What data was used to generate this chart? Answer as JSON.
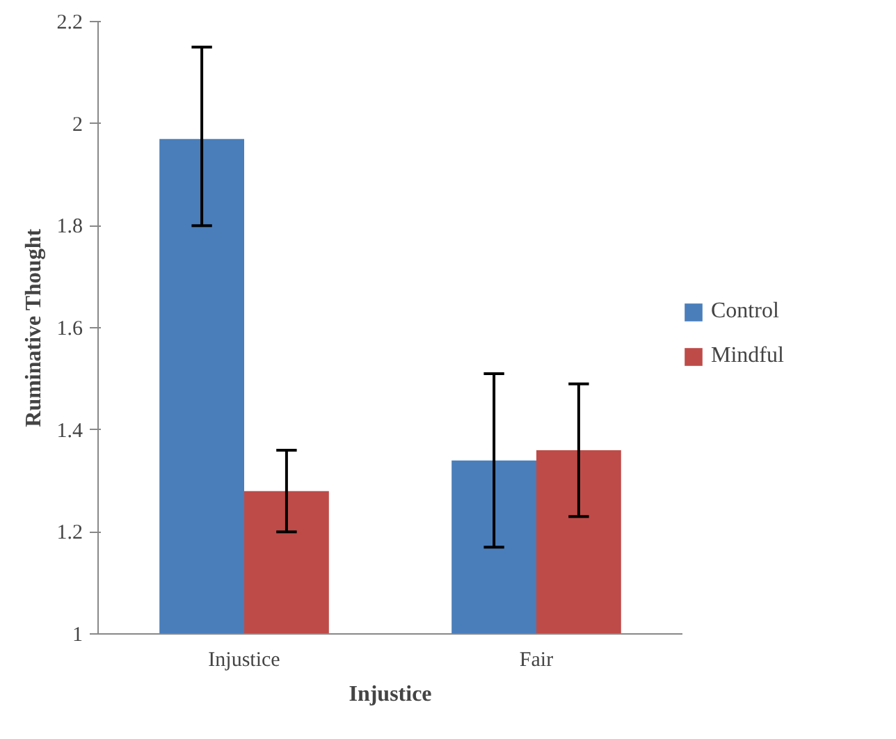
{
  "chart_data": {
    "type": "bar",
    "xlabel": "Injustice",
    "ylabel": "Ruminative Thought",
    "categories": [
      "Injustice",
      "Fair"
    ],
    "series": [
      {
        "name": "Control",
        "color": "#4a7ebb",
        "values": [
          1.97,
          1.34
        ],
        "errors": [
          [
            1.8,
            2.15
          ],
          [
            1.17,
            1.51
          ]
        ]
      },
      {
        "name": "Mindful",
        "color": "#be4b48",
        "values": [
          1.28,
          1.36
        ],
        "errors": [
          [
            1.2,
            1.36
          ],
          [
            1.23,
            1.49
          ]
        ]
      }
    ],
    "ylim": [
      1,
      2.2
    ],
    "yticks": [
      1,
      1.2,
      1.4,
      1.6,
      1.8,
      2,
      2.2
    ],
    "grid": false,
    "legend": "right"
  }
}
